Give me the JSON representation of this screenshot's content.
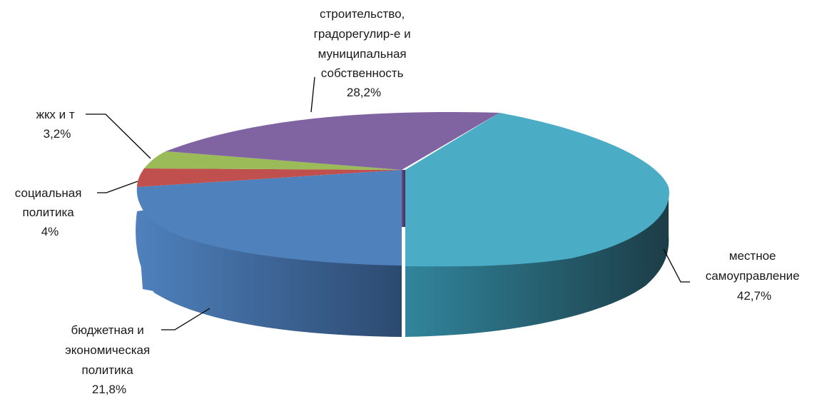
{
  "chart_data": {
    "type": "pie",
    "style": "3d-exploded",
    "title": "",
    "slices": [
      {
        "key": "mestnoe",
        "label_lines": [
          "местное",
          "самоуправление"
        ],
        "value": 42.7,
        "value_label": "42,7%",
        "color": "#4bacc6"
      },
      {
        "key": "budget",
        "label_lines": [
          "бюджетная  и",
          "экономическая",
          "политика"
        ],
        "value": 21.8,
        "value_label": "21,8%",
        "color": "#4f81bd"
      },
      {
        "key": "social",
        "label_lines": [
          "социальная",
          "политика"
        ],
        "value": 4,
        "value_label": "4%",
        "color": "#c0504d"
      },
      {
        "key": "zhkh",
        "label_lines": [
          "жкх и т"
        ],
        "value": 3.2,
        "value_label": "3,2%",
        "color": "#9bbb59"
      },
      {
        "key": "stroit",
        "label_lines": [
          "строительство,",
          "градорегулир-е и",
          "муниципальная",
          "собственность"
        ],
        "value": 28.2,
        "value_label": "28,2%",
        "color": "#8064a2"
      }
    ]
  }
}
